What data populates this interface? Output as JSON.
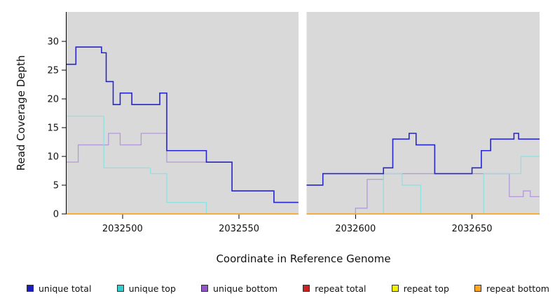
{
  "chart_data": {
    "type": "line",
    "subtype": "step",
    "title": "",
    "xlabel": "Coordinate in Reference Genome",
    "ylabel": "Read Coverage Depth",
    "xlim": [
      2032476,
      2032679
    ],
    "ylim": [
      0,
      35.1
    ],
    "x_ticks": [
      2032500,
      2032550,
      2032600,
      2032650
    ],
    "y_ticks": [
      0,
      5,
      10,
      15,
      20,
      25,
      30
    ],
    "gap": [
      2032575.5,
      2032579
    ],
    "panel_bg": "#d9d9d9",
    "grid": false,
    "legend_position": "bottom",
    "series": [
      {
        "name": "repeat total",
        "color": "#cc2222",
        "width": 1.2,
        "segments": [
          {
            "steps": [
              [
                2032476,
                0
              ]
            ],
            "end": 2032575.5
          },
          {
            "steps": [
              [
                2032579,
                0
              ]
            ],
            "end": 2032679
          }
        ]
      },
      {
        "name": "repeat top",
        "color": "#f0f000",
        "width": 1.2,
        "segments": [
          {
            "steps": [
              [
                2032476,
                0
              ]
            ],
            "end": 2032575.5
          },
          {
            "steps": [
              [
                2032579,
                0
              ]
            ],
            "end": 2032679
          }
        ]
      },
      {
        "name": "unique bottom",
        "color": "#b29ad8",
        "width": 1.3,
        "segments": [
          {
            "steps": [
              [
                2032476,
                9
              ],
              [
                2032481,
                12
              ],
              [
                2032494,
                14
              ],
              [
                2032499,
                12
              ],
              [
                2032508,
                14
              ],
              [
                2032519,
                9
              ],
              [
                2032547,
                4
              ],
              [
                2032565,
                2
              ]
            ],
            "end": 2032575.5
          },
          {
            "steps": [
              [
                2032579,
                0
              ],
              [
                2032600,
                1
              ],
              [
                2032605,
                6
              ],
              [
                2032612,
                7
              ],
              [
                2032666,
                3
              ],
              [
                2032672,
                4
              ],
              [
                2032675,
                3
              ]
            ],
            "end": 2032679
          }
        ]
      },
      {
        "name": "unique top",
        "color": "#8fe2e2",
        "width": 1.3,
        "segments": [
          {
            "steps": [
              [
                2032476,
                17
              ],
              [
                2032492,
                8
              ],
              [
                2032512,
                7
              ],
              [
                2032519,
                2
              ],
              [
                2032536,
                0
              ]
            ],
            "end": 2032575.5
          },
          {
            "steps": [
              [
                2032579,
                0
              ],
              [
                2032612,
                7
              ],
              [
                2032620,
                5
              ],
              [
                2032628,
                0
              ],
              [
                2032655,
                7
              ],
              [
                2032671,
                10
              ]
            ],
            "end": 2032679
          }
        ]
      },
      {
        "name": "unique total",
        "color": "#2626cc",
        "width": 1.6,
        "segments": [
          {
            "steps": [
              [
                2032476,
                26
              ],
              [
                2032480,
                29
              ],
              [
                2032491,
                28
              ],
              [
                2032493,
                23
              ],
              [
                2032496,
                19
              ],
              [
                2032499,
                21
              ],
              [
                2032504,
                19
              ],
              [
                2032516,
                21
              ],
              [
                2032519,
                11
              ],
              [
                2032536,
                9
              ],
              [
                2032547,
                4
              ],
              [
                2032565,
                2
              ]
            ],
            "end": 2032575.5
          },
          {
            "steps": [
              [
                2032579,
                5
              ],
              [
                2032586,
                7
              ],
              [
                2032612,
                8
              ],
              [
                2032616,
                13
              ],
              [
                2032623,
                14
              ],
              [
                2032626,
                12
              ],
              [
                2032634,
                7
              ],
              [
                2032650,
                8
              ],
              [
                2032654,
                11
              ],
              [
                2032658,
                13
              ],
              [
                2032668,
                14
              ],
              [
                2032670,
                13
              ]
            ],
            "end": 2032679
          }
        ]
      },
      {
        "name": "repeat bottom",
        "color": "#ffa520",
        "width": 1.4,
        "segments": [
          {
            "steps": [
              [
                2032476,
                0
              ]
            ],
            "end": 2032575.5
          },
          {
            "steps": [
              [
                2032579,
                0
              ]
            ],
            "end": 2032679
          }
        ]
      }
    ]
  },
  "legend": {
    "items": [
      {
        "label": "unique total",
        "color": "#1c1cc4"
      },
      {
        "label": "unique top",
        "color": "#35cccc"
      },
      {
        "label": "unique bottom",
        "color": "#9256c8"
      },
      {
        "label": "repeat total",
        "color": "#cc2222"
      },
      {
        "label": "repeat top",
        "color": "#f0f000"
      },
      {
        "label": "repeat bottom",
        "color": "#ffa520"
      }
    ]
  }
}
